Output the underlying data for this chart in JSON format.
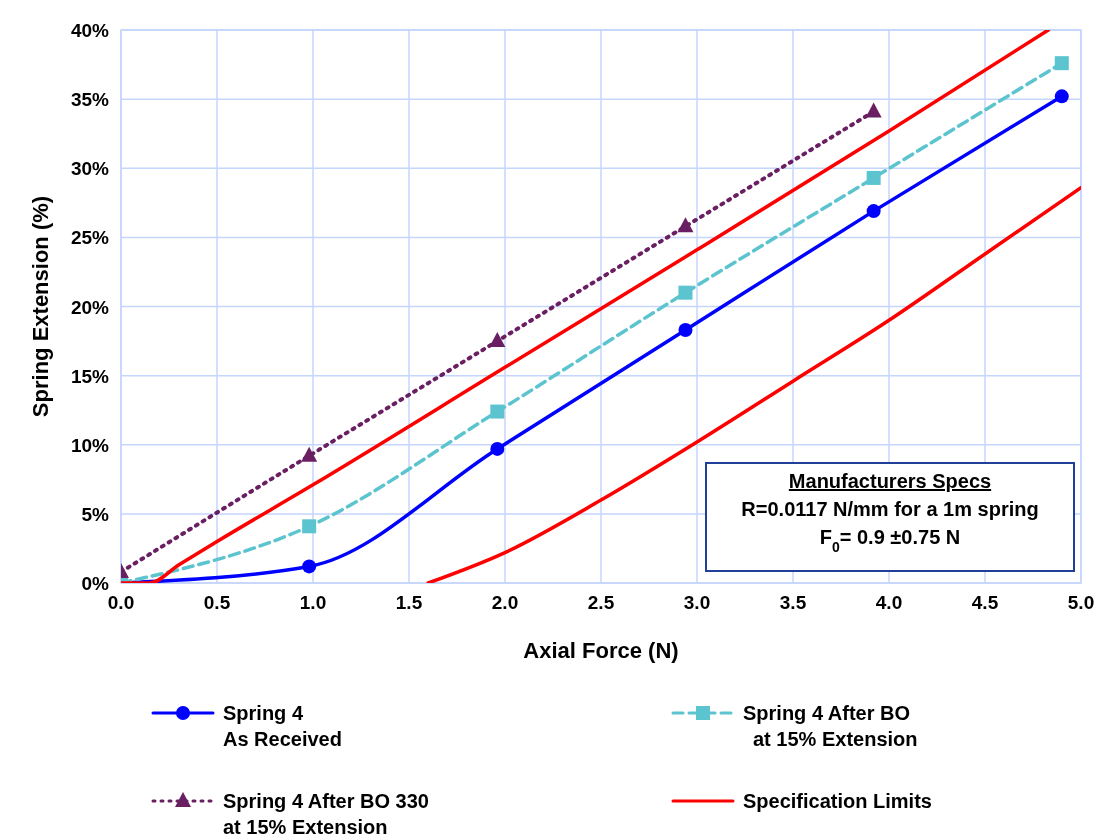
{
  "chart_data": {
    "type": "line",
    "xlabel": "Axial Force (N)",
    "ylabel": "Spring Extension (%)",
    "xlim": [
      0,
      5
    ],
    "xticks": [
      {
        "value": 0,
        "label": "0.0"
      },
      {
        "value": 0.5,
        "label": "0.5"
      },
      {
        "value": 1,
        "label": "1.0"
      },
      {
        "value": 1.5,
        "label": "1.5"
      },
      {
        "value": 2,
        "label": "2.0"
      },
      {
        "value": 2.5,
        "label": "2.5"
      },
      {
        "value": 3,
        "label": "3.0"
      },
      {
        "value": 3.5,
        "label": "3.5"
      },
      {
        "value": 4,
        "label": "4.0"
      },
      {
        "value": 4.5,
        "label": "4.5"
      },
      {
        "value": 5,
        "label": "5.0"
      }
    ],
    "ylim": [
      0,
      40
    ],
    "yticks": [
      {
        "value": 0,
        "label": "0%"
      },
      {
        "value": 5,
        "label": "5%"
      },
      {
        "value": 10,
        "label": "10%"
      },
      {
        "value": 15,
        "label": "15%"
      },
      {
        "value": 20,
        "label": "20%"
      },
      {
        "value": 25,
        "label": "25%"
      },
      {
        "value": 30,
        "label": "30%"
      },
      {
        "value": 35,
        "label": "35%"
      },
      {
        "value": 40,
        "label": "40%"
      }
    ],
    "grid": true,
    "legend": "bottom",
    "annotations": [
      "Manufacturers Specs",
      "R=0.0117 N/mm for a 1m spring",
      "F$_{0}$= 0.9 ±0.75 N"
    ],
    "series": [
      {
        "name": "Spring 4\nAs Received",
        "color": "#0000ff",
        "marker": "circle",
        "line_style": "solid",
        "x": [
          0,
          0.98,
          1.96,
          2.94,
          3.92,
          4.9
        ],
        "values": [
          0,
          1.2,
          9.7,
          18.3,
          26.9,
          35.2
        ]
      },
      {
        "name": "Spring 4 After BO\nat 15% Extension",
        "color": "#5bc4cf",
        "marker": "square",
        "line_style": "dashed",
        "x": [
          0,
          0.98,
          1.96,
          2.94,
          3.92,
          4.9
        ],
        "values": [
          0,
          4.1,
          12.4,
          21.0,
          29.3,
          37.6
        ]
      },
      {
        "name": "Spring 4 After BO 330\nat 15% Extension",
        "color": "#6b1f63",
        "marker": "triangle",
        "line_style": "dotted",
        "x": [
          0,
          0.98,
          1.96,
          2.94,
          3.92
        ],
        "values": [
          0.8,
          9.2,
          17.5,
          25.8,
          34.1
        ]
      },
      {
        "name": "Specification Limits",
        "color": "#ff0000",
        "marker": "none",
        "line_style": "solid",
        "x": [
          0,
          0.15,
          0.3,
          0.5,
          1,
          2,
          3,
          4,
          4.83
        ],
        "values": [
          0,
          0,
          1.3,
          3.0,
          7.1,
          15.6,
          24.1,
          32.7,
          40
        ]
      },
      {
        "color": "#ff0000",
        "marker": "none",
        "line_style": "solid",
        "x": [
          1.6,
          2,
          2.5,
          3,
          3.5,
          4,
          4.5,
          5
        ],
        "values": [
          0,
          2.2,
          6.0,
          10.2,
          14.6,
          19.0,
          23.8,
          28.6
        ]
      }
    ]
  }
}
